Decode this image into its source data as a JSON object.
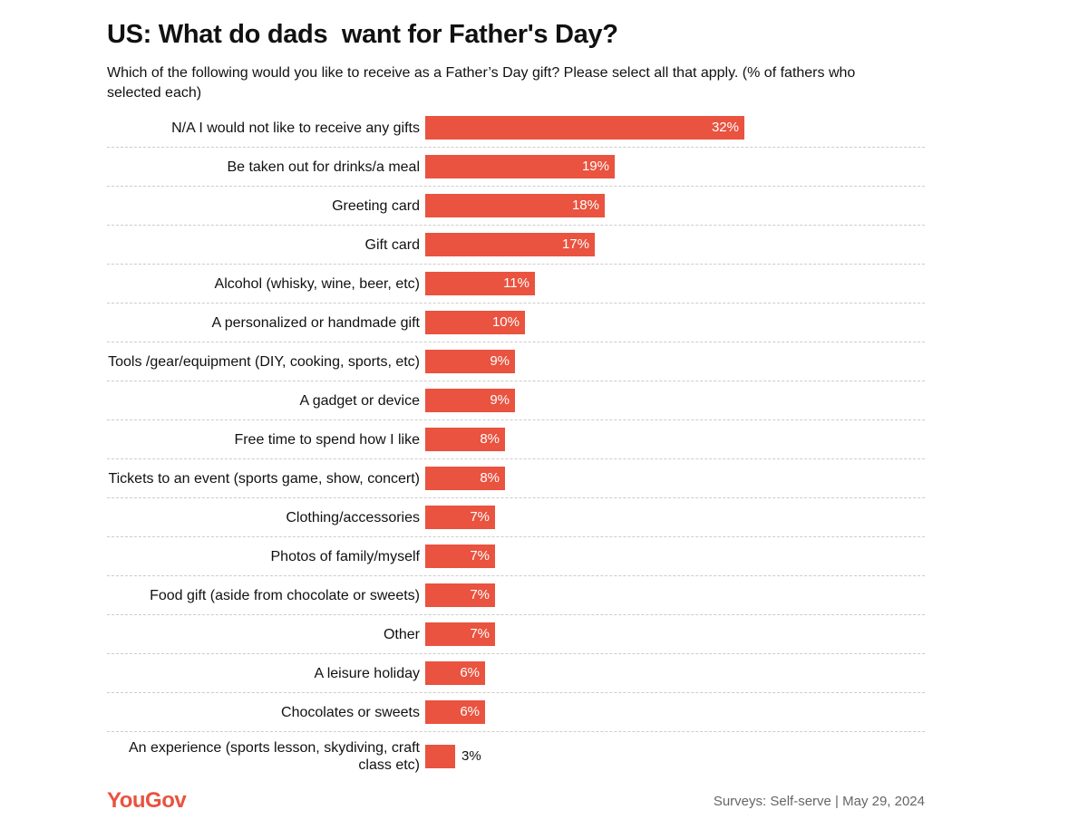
{
  "chart_data": {
    "type": "bar",
    "orientation": "horizontal",
    "title": "US: What do dads  want for Father's Day?",
    "subtitle": "Which of the following would you like to receive as a Father’s Day gift? Please select all that apply. (% of fathers who selected each)",
    "categories": [
      "N/A I would not like to receive any gifts",
      "Be taken out for drinks/a meal",
      "Greeting card",
      "Gift card",
      "Alcohol (whisky, wine, beer, etc)",
      "A personalized or handmade gift",
      "Tools /gear/equipment (DIY, cooking, sports, etc)",
      "A gadget or device",
      "Free time to spend how I like",
      "Tickets to an event (sports game, show, concert)",
      "Clothing/accessories",
      "Photos of family/myself",
      "Food gift (aside from chocolate or sweets)",
      "Other",
      "A leisure holiday",
      "Chocolates or sweets",
      "An experience (sports lesson, skydiving, craft class etc)"
    ],
    "values": [
      32,
      19,
      18,
      17,
      11,
      10,
      9,
      9,
      8,
      8,
      7,
      7,
      7,
      7,
      6,
      6,
      3
    ],
    "value_labels": [
      "32%",
      "19%",
      "18%",
      "17%",
      "11%",
      "10%",
      "9%",
      "9%",
      "8%",
      "8%",
      "7%",
      "7%",
      "7%",
      "7%",
      "6%",
      "6%",
      "3%"
    ],
    "color": "#e9533f",
    "brand": "YouGov",
    "source": "Surveys: Self-serve | May 29, 2024"
  }
}
